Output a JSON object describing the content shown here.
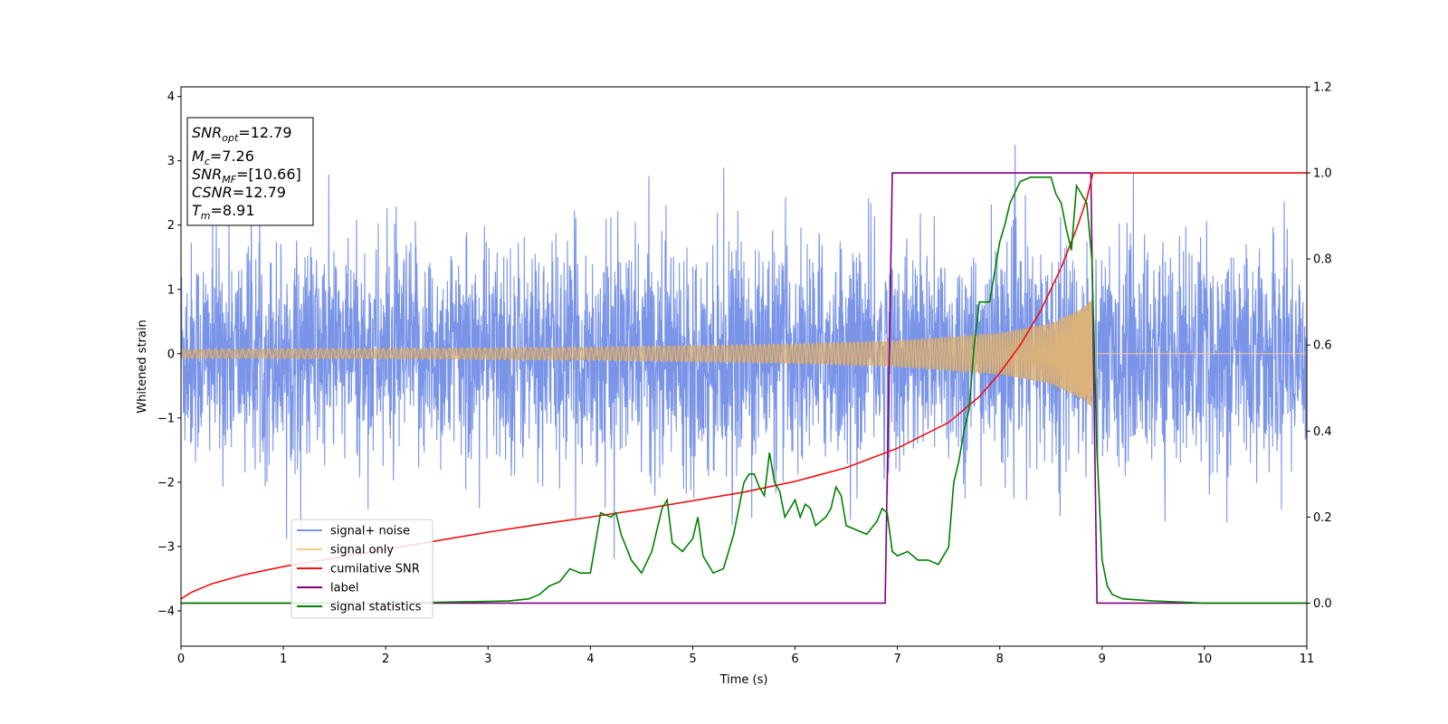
{
  "chart_data": {
    "type": "line",
    "xlabel": "Time (s)",
    "ylabel": "Whitened strain",
    "xlim": [
      0,
      11
    ],
    "ylim_left": [
      -4.55,
      4.15
    ],
    "ylim_right": [
      -0.1,
      1.2
    ],
    "x_ticks": [
      0,
      1,
      2,
      3,
      4,
      5,
      6,
      7,
      8,
      9,
      10,
      11
    ],
    "y_left_ticks": [
      -4,
      -3,
      -2,
      -1,
      0,
      1,
      2,
      3,
      4
    ],
    "y_right_ticks": [
      0.0,
      0.2,
      0.4,
      0.6,
      0.8,
      1.0,
      1.2
    ],
    "grid": false,
    "legend_position": "lower-left",
    "info_box": {
      "position": "top-left",
      "lines": [
        {
          "symbol": "SNR",
          "sub": "opt",
          "value": "=12.79"
        },
        {
          "symbol": "M",
          "sub": "c",
          "value": "=7.26"
        },
        {
          "symbol": "SNR",
          "sub": "MF",
          "value": "=[10.66]"
        },
        {
          "symbol": "CSNR",
          "sub": "",
          "value": "=12.79"
        },
        {
          "symbol": "T",
          "sub": "m",
          "value": "=8.91"
        }
      ]
    },
    "series": [
      {
        "name": "signal+ noise",
        "axis": "left",
        "color": "#7a94e8",
        "kind": "noise",
        "sample_rate_hz": 512,
        "noise_sigma": 0.85,
        "typical_range": [
          -2.5,
          2.5
        ],
        "peak_range": [
          -3.8,
          3.77
        ]
      },
      {
        "name": "signal only",
        "axis": "left",
        "color": "#f5c98a",
        "kind": "chirp",
        "merger_time": 8.91,
        "amplitude_envelope": [
          {
            "t": 0.0,
            "a": 0.07
          },
          {
            "t": 2.0,
            "a": 0.08
          },
          {
            "t": 4.0,
            "a": 0.1
          },
          {
            "t": 6.0,
            "a": 0.15
          },
          {
            "t": 7.0,
            "a": 0.2
          },
          {
            "t": 8.0,
            "a": 0.32
          },
          {
            "t": 8.5,
            "a": 0.47
          },
          {
            "t": 8.8,
            "a": 0.7
          },
          {
            "t": 8.91,
            "a": 0.85
          }
        ]
      },
      {
        "name": "cumilative SNR",
        "axis": "right",
        "color": "#ee1111",
        "x": [
          0,
          0.1,
          0.3,
          0.6,
          1.0,
          1.5,
          2.0,
          2.5,
          3.0,
          3.5,
          4.0,
          4.5,
          5.0,
          5.5,
          6.0,
          6.5,
          7.0,
          7.5,
          7.8,
          8.0,
          8.2,
          8.4,
          8.6,
          8.75,
          8.85,
          8.91,
          9.0,
          10.0,
          11.0
        ],
        "values": [
          0.01,
          0.025,
          0.045,
          0.065,
          0.085,
          0.105,
          0.125,
          0.145,
          0.165,
          0.183,
          0.2,
          0.218,
          0.238,
          0.258,
          0.283,
          0.315,
          0.36,
          0.42,
          0.48,
          0.535,
          0.6,
          0.68,
          0.78,
          0.87,
          0.94,
          1.0,
          1.0,
          1.0,
          1.0
        ]
      },
      {
        "name": "label",
        "axis": "right",
        "color": "#800080",
        "x": [
          0,
          6.88,
          6.95,
          8.89,
          8.95,
          11
        ],
        "values": [
          0.0,
          0.0,
          1.0,
          1.0,
          0.0,
          0.0
        ]
      },
      {
        "name": "signal statistics",
        "axis": "right",
        "color": "#008000",
        "x": [
          0,
          0.5,
          1.0,
          1.5,
          2.0,
          2.5,
          3.0,
          3.2,
          3.4,
          3.5,
          3.6,
          3.7,
          3.8,
          3.9,
          4.0,
          4.1,
          4.2,
          4.25,
          4.3,
          4.4,
          4.5,
          4.6,
          4.7,
          4.75,
          4.8,
          4.9,
          5.0,
          5.05,
          5.1,
          5.2,
          5.3,
          5.4,
          5.5,
          5.55,
          5.6,
          5.65,
          5.7,
          5.75,
          5.8,
          5.85,
          5.9,
          6.0,
          6.05,
          6.1,
          6.15,
          6.2,
          6.3,
          6.35,
          6.4,
          6.45,
          6.5,
          6.6,
          6.7,
          6.8,
          6.85,
          6.9,
          6.95,
          7.0,
          7.1,
          7.2,
          7.3,
          7.4,
          7.5,
          7.55,
          7.6,
          7.65,
          7.7,
          7.75,
          7.8,
          7.85,
          7.9,
          8.0,
          8.05,
          8.1,
          8.2,
          8.3,
          8.4,
          8.5,
          8.55,
          8.6,
          8.65,
          8.7,
          8.75,
          8.8,
          8.85,
          8.9,
          8.95,
          9.0,
          9.05,
          9.1,
          9.2,
          9.5,
          10.0,
          11.0
        ],
        "values": [
          0.0,
          0.0,
          0.0,
          0.0,
          0.0,
          0.002,
          0.004,
          0.005,
          0.01,
          0.02,
          0.04,
          0.05,
          0.08,
          0.07,
          0.07,
          0.21,
          0.2,
          0.21,
          0.16,
          0.1,
          0.07,
          0.12,
          0.22,
          0.24,
          0.14,
          0.12,
          0.15,
          0.2,
          0.11,
          0.07,
          0.08,
          0.16,
          0.28,
          0.3,
          0.3,
          0.27,
          0.25,
          0.35,
          0.28,
          0.26,
          0.2,
          0.24,
          0.2,
          0.23,
          0.22,
          0.18,
          0.2,
          0.22,
          0.27,
          0.25,
          0.18,
          0.17,
          0.16,
          0.19,
          0.22,
          0.21,
          0.12,
          0.11,
          0.12,
          0.1,
          0.1,
          0.09,
          0.13,
          0.28,
          0.33,
          0.4,
          0.45,
          0.6,
          0.7,
          0.7,
          0.7,
          0.84,
          0.88,
          0.93,
          0.98,
          0.99,
          0.99,
          0.99,
          0.95,
          0.93,
          0.87,
          0.82,
          0.97,
          0.95,
          0.93,
          0.8,
          0.35,
          0.1,
          0.04,
          0.02,
          0.01,
          0.005,
          0.0,
          0.0
        ]
      }
    ]
  }
}
